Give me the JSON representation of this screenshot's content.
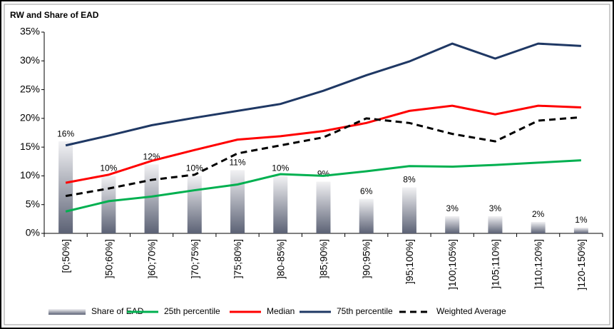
{
  "chart_data": {
    "type": "bar",
    "title": "RW and Share of EAD",
    "categories": [
      "[0;50%]",
      "]50;60%]",
      "]60;70%]",
      "]70;75%]",
      "]75;80%]",
      "]80-85%]",
      "]85;90%]",
      "]90;95%]",
      "]95;100%]",
      "]100;105%]",
      "]105;110%]",
      "]110;120%]",
      "]120-150%]"
    ],
    "series": [
      {
        "name": "Share of EAD",
        "type": "bar",
        "color": "#5c6275",
        "values": [
          16,
          10,
          12,
          10,
          11,
          10,
          9,
          6,
          8,
          3,
          3,
          2,
          1
        ],
        "value_labels": [
          "16%",
          "10%",
          "12%",
          "10%",
          "11%",
          "10%",
          "9%",
          "6%",
          "8%",
          "3%",
          "3%",
          "2%",
          "1%"
        ]
      },
      {
        "name": "25th percentile",
        "type": "line",
        "color": "#00b050",
        "values": [
          3.8,
          5.6,
          6.4,
          7.5,
          8.5,
          10.3,
          10.0,
          10.8,
          11.7,
          11.6,
          11.9,
          12.3,
          12.7
        ]
      },
      {
        "name": "Median",
        "type": "line",
        "color": "#ff0000",
        "values": [
          8.8,
          10.2,
          12.6,
          14.5,
          16.3,
          16.9,
          17.8,
          19.2,
          21.3,
          22.2,
          20.7,
          22.2,
          21.9
        ]
      },
      {
        "name": "75th percentile",
        "type": "line",
        "color": "#1f3864",
        "values": [
          15.3,
          17.0,
          18.8,
          20.1,
          21.3,
          22.5,
          24.8,
          27.5,
          29.9,
          33.0,
          30.4,
          33.0,
          32.6
        ]
      },
      {
        "name": "Weighted Average",
        "type": "line",
        "dashed": true,
        "color": "#000000",
        "values": [
          6.5,
          7.8,
          9.3,
          10.2,
          13.9,
          15.3,
          16.7,
          20.0,
          19.2,
          17.3,
          16.0,
          19.6,
          20.2
        ]
      }
    ],
    "ylim": [
      0,
      35
    ],
    "yticks": [
      {
        "value": 0,
        "label": "0%"
      },
      {
        "value": 5,
        "label": "5%"
      },
      {
        "value": 10,
        "label": "10%"
      },
      {
        "value": 15,
        "label": "15%"
      },
      {
        "value": 20,
        "label": "20%"
      },
      {
        "value": 25,
        "label": "25%"
      },
      {
        "value": 30,
        "label": "30%"
      },
      {
        "value": 35,
        "label": "35%"
      }
    ],
    "grid": false,
    "legend": "bottom"
  }
}
